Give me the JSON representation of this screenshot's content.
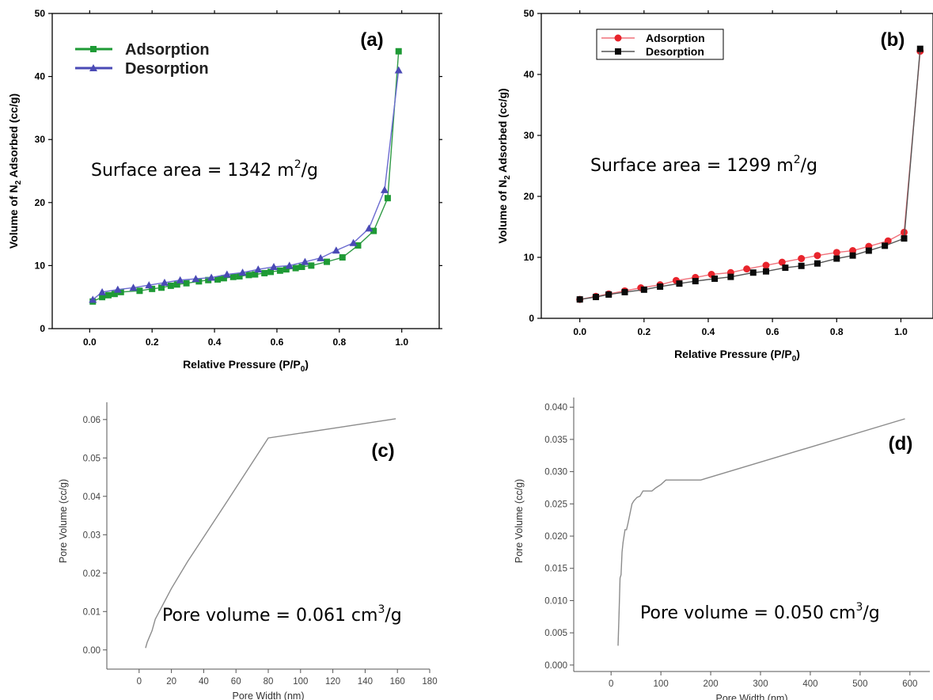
{
  "chart_data": [
    {
      "panel": "(a)",
      "type": "line",
      "title": "",
      "xlabel": "Relative Pressure (P/P",
      "xlabel_sub": "0",
      "xlabel_end": ")",
      "ylabel": "Volume of N",
      "ylabel_sub": "2",
      "ylabel_end": " Adsorbed (cc/g)",
      "xlim": [
        -0.12,
        1.12
      ],
      "ylim": [
        0,
        50
      ],
      "xticks": [
        0.0,
        0.2,
        0.4,
        0.6,
        0.8,
        1.0
      ],
      "xtick_labels": [
        "0.0",
        "0.2",
        "0.4",
        "0.6",
        "0.8",
        "1.0"
      ],
      "yticks": [
        0,
        10,
        20,
        30,
        40,
        50
      ],
      "ytick_labels": [
        "0",
        "10",
        "20",
        "30",
        "40",
        "50"
      ],
      "annotation": {
        "prefix": "Surface area = 1342 m",
        "sup": "2",
        "suffix": "/g"
      },
      "legend_position": "top-left",
      "series": [
        {
          "name": "Adsorption",
          "color": "#1e9a35",
          "line_color": "#2f9a45",
          "marker": "square",
          "x": [
            0.01,
            0.04,
            0.06,
            0.08,
            0.1,
            0.16,
            0.2,
            0.23,
            0.26,
            0.28,
            0.31,
            0.35,
            0.38,
            0.41,
            0.43,
            0.46,
            0.48,
            0.51,
            0.53,
            0.56,
            0.58,
            0.61,
            0.63,
            0.66,
            0.68,
            0.71,
            0.76,
            0.81,
            0.86,
            0.91,
            0.955,
            0.99
          ],
          "y": [
            4.3,
            5.0,
            5.3,
            5.5,
            5.8,
            6.0,
            6.3,
            6.5,
            6.8,
            7.0,
            7.2,
            7.5,
            7.7,
            7.8,
            8.0,
            8.2,
            8.3,
            8.5,
            8.6,
            8.8,
            9.0,
            9.2,
            9.4,
            9.6,
            9.8,
            10.0,
            10.6,
            11.3,
            13.2,
            15.5,
            20.7,
            44.0
          ]
        },
        {
          "name": "Desorption",
          "color": "#4a4ab5",
          "line_color": "#6b6bd0",
          "marker": "triangle",
          "x": [
            0.01,
            0.04,
            0.09,
            0.14,
            0.19,
            0.24,
            0.29,
            0.34,
            0.39,
            0.44,
            0.49,
            0.54,
            0.59,
            0.64,
            0.69,
            0.74,
            0.79,
            0.845,
            0.895,
            0.945,
            0.99
          ],
          "y": [
            4.6,
            5.8,
            6.2,
            6.5,
            6.9,
            7.3,
            7.7,
            7.9,
            8.1,
            8.6,
            8.9,
            9.4,
            9.8,
            10.0,
            10.6,
            11.2,
            12.4,
            13.6,
            15.9,
            22.0,
            41.0
          ]
        }
      ]
    },
    {
      "panel": "(b)",
      "type": "line",
      "title": "",
      "xlabel": "Relative Pressure (P/P",
      "xlabel_sub": "0",
      "xlabel_end": ")",
      "ylabel": "Volume of N",
      "ylabel_sub": "2",
      "ylabel_end": " Adsorbed (cc/g)",
      "xlim": [
        -0.12,
        1.1
      ],
      "ylim": [
        0,
        50
      ],
      "xticks": [
        0.0,
        0.2,
        0.4,
        0.6,
        0.8,
        1.0
      ],
      "xtick_labels": [
        "0.0",
        "0.2",
        "0.4",
        "0.6",
        "0.8",
        "1.0"
      ],
      "yticks": [
        0,
        10,
        20,
        30,
        40,
        50
      ],
      "ytick_labels": [
        "0",
        "10",
        "20",
        "30",
        "40",
        "50"
      ],
      "annotation": {
        "prefix": "Surface area = 1299 m",
        "sup": "2",
        "suffix": "/g"
      },
      "legend_position": "top-left",
      "series": [
        {
          "name": "Adsorption",
          "color": "#e8242c",
          "line_color": "#f0707a",
          "marker": "circle",
          "x": [
            0.0,
            0.05,
            0.09,
            0.14,
            0.19,
            0.25,
            0.3,
            0.36,
            0.41,
            0.47,
            0.52,
            0.58,
            0.63,
            0.69,
            0.74,
            0.8,
            0.85,
            0.9,
            0.96,
            1.01,
            1.06
          ],
          "y": [
            3.1,
            3.6,
            4.0,
            4.5,
            5.0,
            5.5,
            6.2,
            6.7,
            7.2,
            7.5,
            8.1,
            8.7,
            9.2,
            9.8,
            10.3,
            10.8,
            11.1,
            11.8,
            12.7,
            14.1,
            43.8
          ]
        },
        {
          "name": "Desorption",
          "color": "#0a0a0a",
          "line_color": "#555555",
          "marker": "square",
          "x": [
            0.0,
            0.05,
            0.09,
            0.14,
            0.2,
            0.25,
            0.31,
            0.36,
            0.42,
            0.47,
            0.54,
            0.58,
            0.64,
            0.69,
            0.74,
            0.8,
            0.85,
            0.9,
            0.95,
            1.01,
            1.06
          ],
          "y": [
            3.1,
            3.5,
            3.9,
            4.3,
            4.7,
            5.2,
            5.7,
            6.1,
            6.5,
            6.8,
            7.5,
            7.7,
            8.3,
            8.6,
            9.0,
            9.8,
            10.3,
            11.1,
            11.9,
            13.1,
            44.2
          ]
        }
      ]
    },
    {
      "panel": "(c)",
      "type": "line",
      "title": "",
      "xlabel": "Pore Width (nm)",
      "ylabel": "Pore Volume (cc/g)",
      "xlim": [
        -20,
        180
      ],
      "ylim": [
        -0.005,
        0.0645
      ],
      "xticks": [
        0,
        20,
        40,
        60,
        80,
        100,
        120,
        140,
        160,
        180
      ],
      "xtick_labels": [
        "0",
        "20",
        "40",
        "60",
        "80",
        "100",
        "120",
        "140",
        "160",
        "180"
      ],
      "yticks": [
        0.0,
        0.01,
        0.02,
        0.03,
        0.04,
        0.05,
        0.06
      ],
      "ytick_labels": [
        "0.00",
        "0.01",
        "0.02",
        "0.03",
        "0.04",
        "0.05",
        "0.06"
      ],
      "annotation": {
        "prefix": "Pore volume = 0.061 cm",
        "sup": "3",
        "suffix": "/g"
      },
      "series": [
        {
          "color": "#8c8c8c",
          "x": [
            4,
            5,
            6,
            8,
            10,
            20,
            30,
            55,
            80,
            120,
            159
          ],
          "y": [
            0.0005,
            0.002,
            0.003,
            0.005,
            0.008,
            0.016,
            0.023,
            0.039,
            0.0552,
            0.0577,
            0.0602
          ]
        }
      ]
    },
    {
      "panel": "(d)",
      "type": "line",
      "title": "",
      "xlabel": "Pore Width (nm)",
      "ylabel": "Pore Volume  (cc/g)",
      "xlim": [
        -75,
        640
      ],
      "ylim": [
        -0.001,
        0.0415
      ],
      "xticks": [
        0,
        100,
        200,
        300,
        400,
        500,
        600
      ],
      "xtick_labels": [
        "0",
        "100",
        "200",
        "300",
        "400",
        "500",
        "600"
      ],
      "yticks": [
        0.0,
        0.005,
        0.01,
        0.015,
        0.02,
        0.025,
        0.03,
        0.035,
        0.04
      ],
      "ytick_labels": [
        "0.000",
        "0.005",
        "0.010",
        "0.015",
        "0.020",
        "0.025",
        "0.030",
        "0.035",
        "0.040"
      ],
      "annotation": {
        "prefix": "Pore volume = 0.050 cm",
        "sup": "3",
        "suffix": "/g"
      },
      "series": [
        {
          "color": "#8c8c8c",
          "x": [
            14,
            16,
            18,
            20,
            22,
            24,
            28,
            31,
            34,
            38,
            42,
            46,
            52,
            58,
            64,
            70,
            76,
            82,
            90,
            100,
            110,
            120,
            150,
            180,
            590
          ],
          "y": [
            0.003,
            0.008,
            0.0135,
            0.014,
            0.0175,
            0.019,
            0.021,
            0.021,
            0.022,
            0.0235,
            0.025,
            0.0255,
            0.026,
            0.0262,
            0.027,
            0.027,
            0.027,
            0.027,
            0.0275,
            0.028,
            0.0287,
            0.0287,
            0.0287,
            0.0287,
            0.0382
          ]
        }
      ]
    }
  ],
  "colors": {
    "axis": "#000000",
    "light_axis": "#555555"
  }
}
